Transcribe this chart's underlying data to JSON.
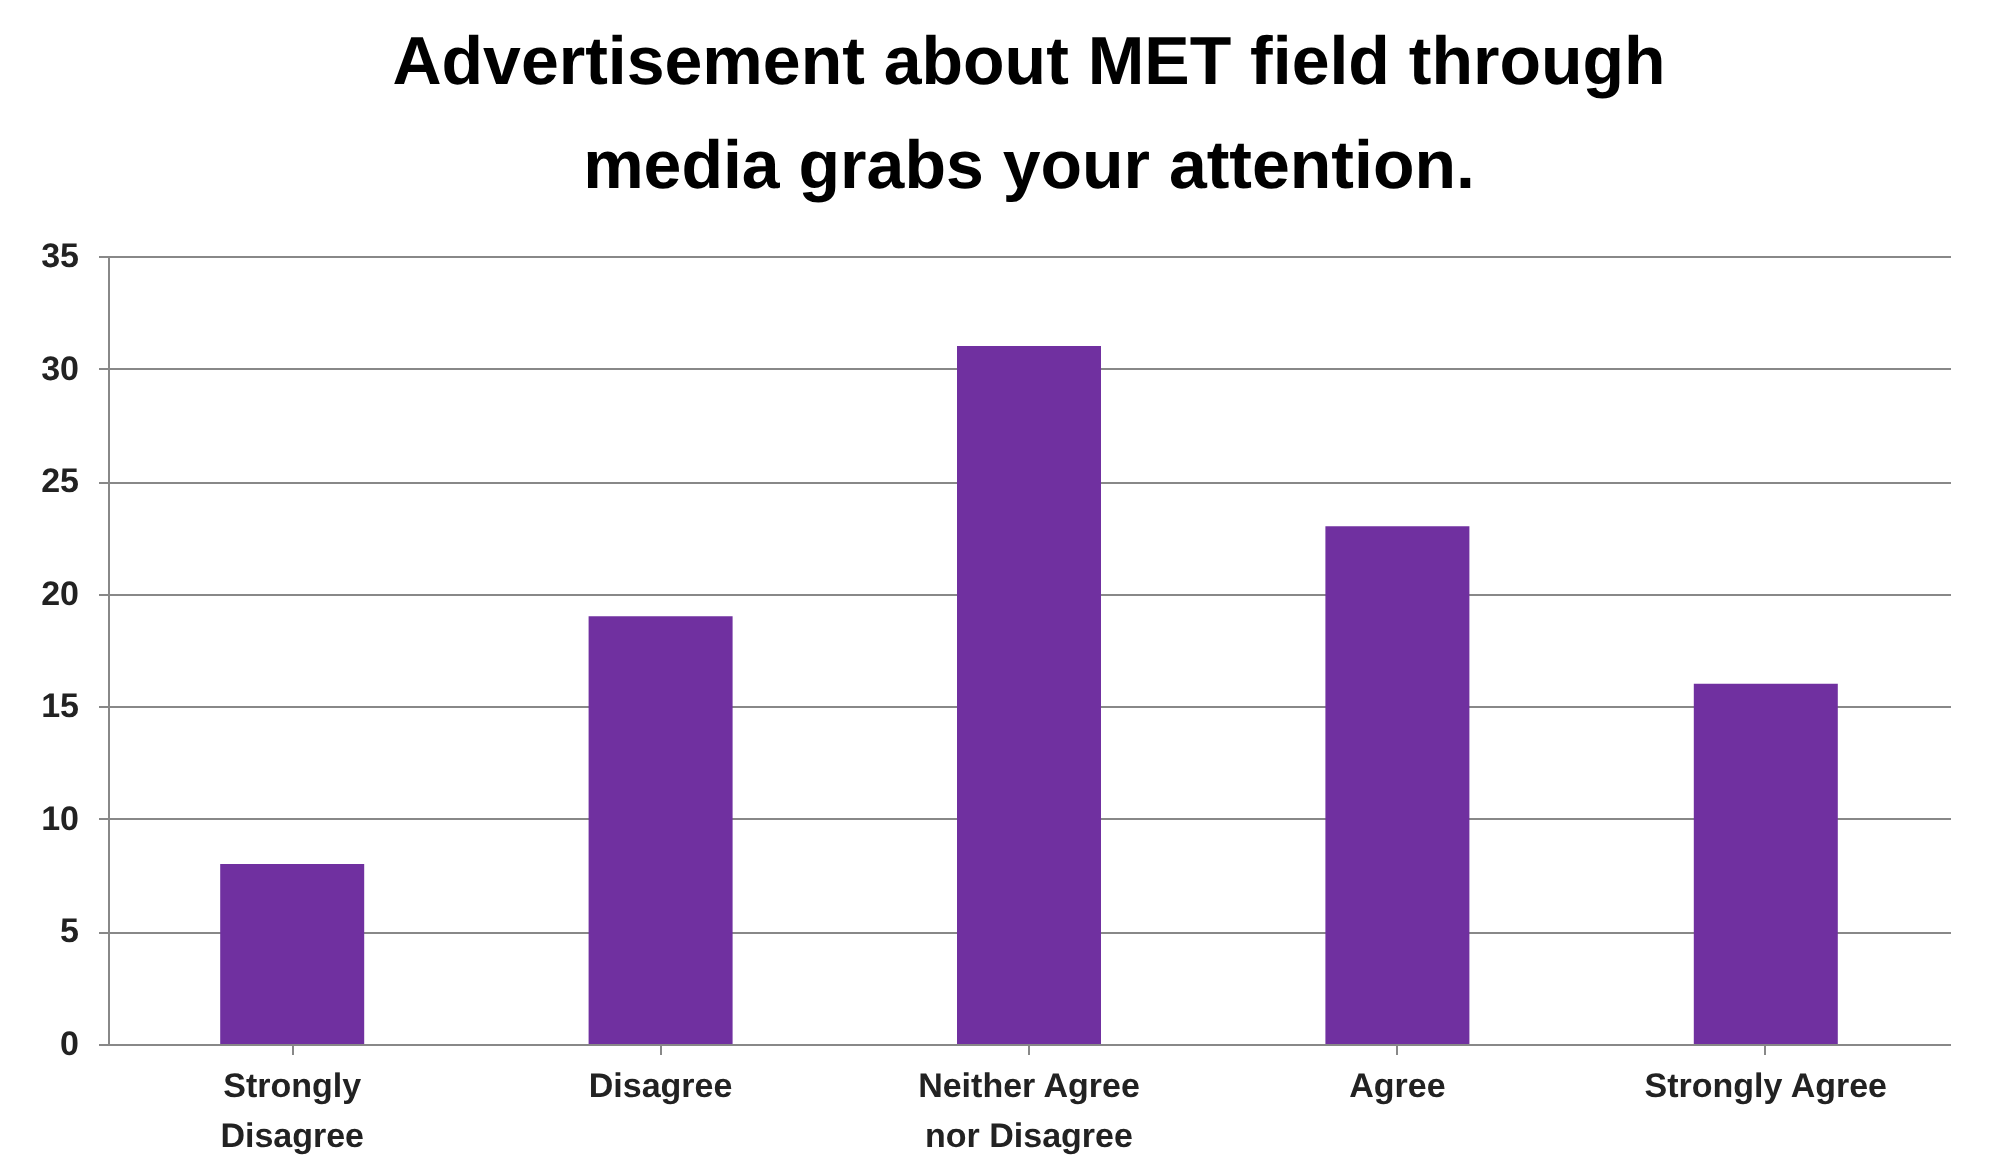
{
  "chart_data": {
    "type": "bar",
    "title": "Advertisement about MET field through media grabs your attention.",
    "categories": [
      "Strongly Disagree",
      "Disagree",
      "Neither Agree nor Disagree",
      "Agree",
      "Strongly Agree"
    ],
    "values": [
      8,
      19,
      31,
      23,
      16
    ],
    "color": "#7030a0",
    "ylim": [
      0,
      35
    ],
    "yticks": [
      0,
      5,
      10,
      15,
      20,
      25,
      30,
      35
    ],
    "grid": "y"
  }
}
